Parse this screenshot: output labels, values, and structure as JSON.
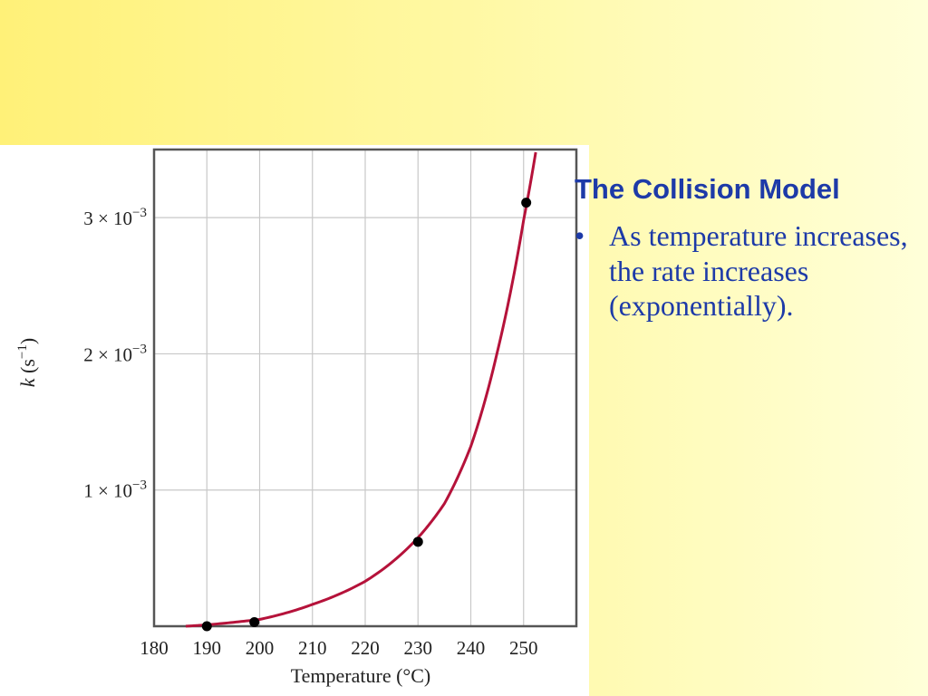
{
  "slide": {
    "title": "The Collision Model",
    "bullets": [
      {
        "symbol": "•",
        "text": "As temperature increases, the rate increases (exponentially)."
      }
    ]
  },
  "chart_data": {
    "type": "scatter",
    "title": "",
    "xlabel": "Temperature (°C)",
    "ylabel_italic": "k",
    "ylabel_rest": " (s",
    "ylabel_sup": "−1",
    "ylabel_close": ")",
    "xlim": [
      180,
      260
    ],
    "ylim": [
      0,
      0.0035
    ],
    "x_ticks": [
      180,
      190,
      200,
      210,
      220,
      230,
      240,
      250
    ],
    "y_ticks": [
      {
        "value": 0.001,
        "mantissa": "1",
        "times": "×",
        "base": "10",
        "exp": "−3"
      },
      {
        "value": 0.002,
        "mantissa": "2",
        "times": "×",
        "base": "10",
        "exp": "−3"
      },
      {
        "value": 0.003,
        "mantissa": "3",
        "times": "×",
        "base": "10",
        "exp": "−3"
      }
    ],
    "grid": true,
    "points": [
      {
        "x": 190,
        "y": 0.0
      },
      {
        "x": 199,
        "y": 3e-05
      },
      {
        "x": 230,
        "y": 0.00062
      },
      {
        "x": 250.5,
        "y": 0.00311
      }
    ],
    "fit_curve": {
      "form": "exponential",
      "x_range": [
        186,
        252.3
      ],
      "samples": [
        [
          186,
          0.0
        ],
        [
          190,
          1e-05
        ],
        [
          200,
          5e-05
        ],
        [
          210,
          0.00016
        ],
        [
          220,
          0.00033
        ],
        [
          230,
          0.00065
        ],
        [
          235,
          0.0009
        ],
        [
          240,
          0.00132
        ],
        [
          245,
          0.00201
        ],
        [
          250,
          0.00298
        ],
        [
          252.3,
          0.00348
        ]
      ],
      "color": "#b5123a"
    },
    "point_color": "#000000",
    "grid_color": "#c8c8c8",
    "frame_color": "#555555"
  }
}
